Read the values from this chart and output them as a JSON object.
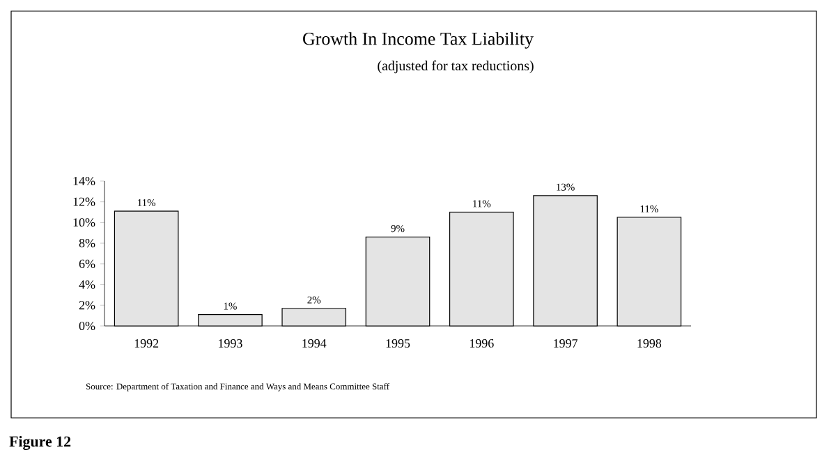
{
  "chart_data": {
    "type": "bar",
    "title": "Growth In Income Tax Liability",
    "subtitle": "(adjusted for tax reductions)",
    "categories": [
      "1992",
      "1993",
      "1994",
      "1995",
      "1996",
      "1997",
      "1998"
    ],
    "values": [
      11.1,
      1.1,
      1.7,
      8.6,
      11.0,
      12.6,
      10.5
    ],
    "value_labels": [
      "11%",
      "1%",
      "2%",
      "9%",
      "11%",
      "13%",
      "11%"
    ],
    "color": "#e4e4e4",
    "ylim": [
      0,
      14
    ],
    "yticks": [
      {
        "value": 0,
        "label": "0%"
      },
      {
        "value": 2,
        "label": "2%"
      },
      {
        "value": 4,
        "label": "4%"
      },
      {
        "value": 6,
        "label": "6%"
      },
      {
        "value": 8,
        "label": "8%"
      },
      {
        "value": 10,
        "label": "10%"
      },
      {
        "value": 12,
        "label": "12%"
      },
      {
        "value": 14,
        "label": "14%"
      }
    ],
    "annotations": [
      "Source: Department of Taxation and Finance and Ways and Means Committee Staff",
      "Figure 12"
    ]
  }
}
